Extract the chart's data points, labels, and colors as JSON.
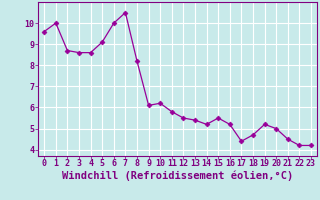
{
  "x": [
    0,
    1,
    2,
    3,
    4,
    5,
    6,
    7,
    8,
    9,
    10,
    11,
    12,
    13,
    14,
    15,
    16,
    17,
    18,
    19,
    20,
    21,
    22,
    23
  ],
  "y": [
    9.6,
    10.0,
    8.7,
    8.6,
    8.6,
    9.1,
    10.0,
    10.5,
    8.2,
    6.1,
    6.2,
    5.8,
    5.5,
    5.4,
    5.2,
    5.5,
    5.2,
    4.4,
    4.7,
    5.2,
    5.0,
    4.5,
    4.2,
    4.2
  ],
  "line_color": "#990099",
  "marker": "D",
  "marker_size": 2.5,
  "bg_color": "#c8eaea",
  "grid_color": "#ffffff",
  "xlabel": "Windchill (Refroidissement éolien,°C)",
  "xlabel_color": "#800080",
  "xlabel_fontsize": 7.5,
  "ylabel_ticks": [
    4,
    5,
    6,
    7,
    8,
    9,
    10
  ],
  "xtick_labels": [
    "0",
    "1",
    "2",
    "3",
    "4",
    "5",
    "6",
    "7",
    "8",
    "9",
    "10",
    "11",
    "12",
    "13",
    "14",
    "15",
    "16",
    "17",
    "18",
    "19",
    "20",
    "21",
    "22",
    "23"
  ],
  "ylim": [
    3.7,
    11.0
  ],
  "xlim": [
    -0.5,
    23.5
  ],
  "tick_color": "#800080",
  "tick_fontsize": 6.0,
  "axis_color": "#800080",
  "spine_color": "#800080"
}
